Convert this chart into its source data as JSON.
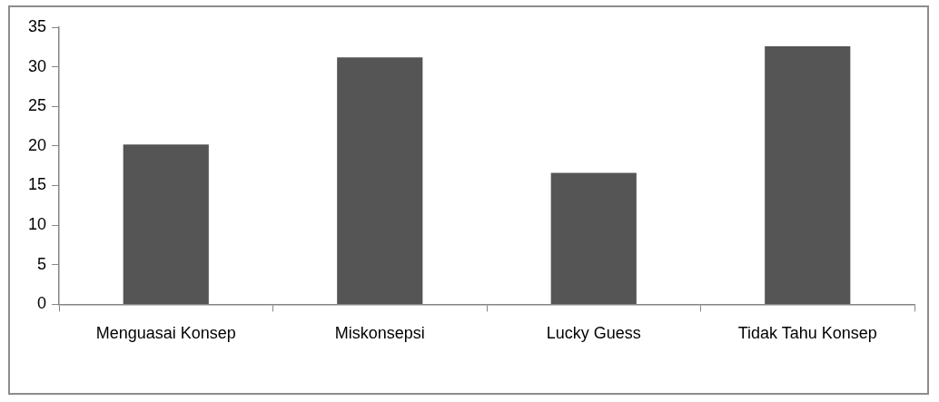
{
  "chart_data": {
    "type": "bar",
    "categories": [
      "Menguasai Konsep",
      "Miskonsepsi",
      "Lucky Guess",
      "Tidak Tahu Konsep"
    ],
    "values": [
      20.2,
      31.2,
      16.6,
      32.6
    ],
    "color": "#555555",
    "ylim": [
      0,
      35
    ],
    "yticks": [
      0,
      5,
      10,
      15,
      20,
      25,
      30,
      35
    ],
    "grid": false,
    "legend": false
  }
}
